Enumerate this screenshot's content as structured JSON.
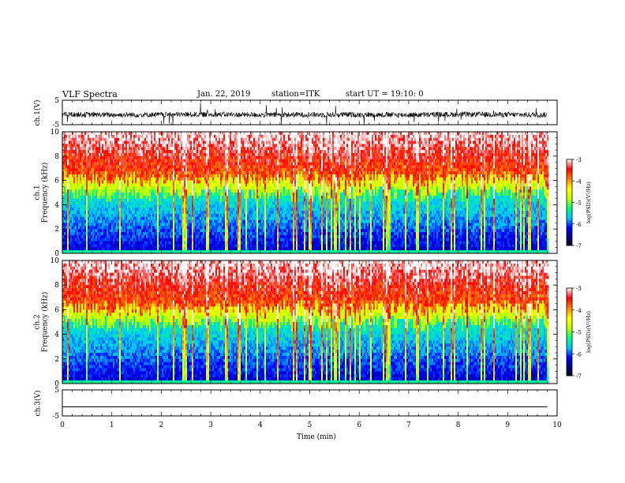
{
  "header": {
    "title": "VLF Spectra",
    "date": "Jan. 22, 2019",
    "station": "station=ITK",
    "start": "start UT = 19:10: 0"
  },
  "colors": {
    "colormap": [
      "#000000",
      "#00007f",
      "#0000ff",
      "#00c8ff",
      "#00ff7f",
      "#c8ff00",
      "#ffff00",
      "#ff7f00",
      "#ff0000",
      "#ffffff"
    ]
  },
  "chart_data": [
    {
      "type": "line",
      "panel": "ch1-waveform",
      "ylabel": "ch.1(V)",
      "yticks": [
        "5",
        "-5"
      ],
      "ylim": [
        -5,
        5
      ],
      "x": [
        0,
        1,
        2,
        3,
        4,
        5,
        6,
        7,
        8,
        9,
        9.8
      ],
      "values": [
        -0.8,
        -1.0,
        -0.9,
        -0.8,
        -1.0,
        -0.9,
        -0.9,
        -1.0,
        -0.8,
        -0.9,
        -1.0
      ]
    },
    {
      "type": "heatmap",
      "panel": "ch1-spectrogram",
      "ylabel": "ch.1\nFrequency (kHz)",
      "ylim": [
        0,
        10
      ],
      "yticks": [
        "0",
        "2",
        "4",
        "6",
        "8",
        "10"
      ],
      "xlim": [
        0,
        10
      ],
      "data_xrange": [
        0,
        9.8
      ],
      "colorbar": {
        "label": "log(PSD)(V²/Hz)",
        "range": [
          -7,
          -3
        ],
        "ticks": [
          "-3",
          "-4",
          "-5",
          "-6",
          "-7"
        ]
      }
    },
    {
      "type": "heatmap",
      "panel": "ch2-spectrogram",
      "ylabel": "ch.2\nFrequency (kHz)",
      "ylim": [
        0,
        10
      ],
      "yticks": [
        "0",
        "2",
        "4",
        "6",
        "8",
        "10"
      ],
      "xlim": [
        0,
        10
      ],
      "data_xrange": [
        0,
        9.8
      ],
      "colorbar": {
        "label": "log(PSD)(V²/Hz)",
        "range": [
          -7,
          -3
        ],
        "ticks": [
          "-3",
          "-4",
          "-5",
          "-6",
          "-7"
        ]
      }
    },
    {
      "type": "line",
      "panel": "ch3-waveform",
      "ylabel": "ch.3(V)",
      "yticks": [
        "5",
        "-5"
      ],
      "ylim": [
        -5,
        5
      ],
      "x": [
        0,
        1,
        2,
        3,
        4,
        5,
        6,
        7,
        8,
        9,
        9.8
      ],
      "values": [
        -1.5,
        -1.5,
        -1.5,
        -1.5,
        -1.5,
        -1.5,
        -1.5,
        -1.5,
        -1.5,
        -1.5,
        -1.5
      ]
    }
  ],
  "xaxis": {
    "label": "Time (min)",
    "ticks": [
      "0",
      "1",
      "2",
      "3",
      "4",
      "5",
      "6",
      "7",
      "8",
      "9",
      "10"
    ],
    "xlim": [
      0,
      10
    ]
  }
}
